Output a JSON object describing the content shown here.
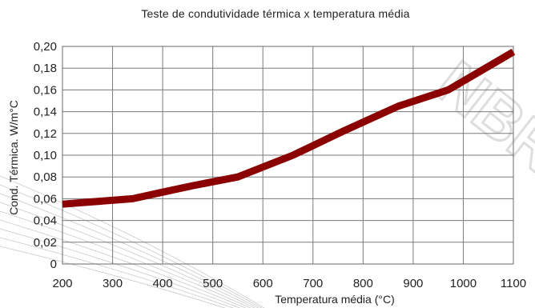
{
  "chart_data": {
    "type": "line",
    "title": "Teste de condutividade térmica x temperatura  média",
    "xlabel": "Temperatura média (°C)",
    "ylabel": "Cond. Térmica. W/m°C",
    "xlim": [
      200,
      1100
    ],
    "ylim": [
      0,
      0.2
    ],
    "x_ticks": [
      200,
      300,
      400,
      500,
      600,
      700,
      800,
      900,
      1000,
      1100
    ],
    "y_ticks": [
      0,
      0.02,
      0.04,
      0.06,
      0.08,
      0.1,
      0.12,
      0.14,
      0.16,
      0.18,
      0.2
    ],
    "x_tick_labels": [
      "200",
      "300",
      "400",
      "500",
      "600",
      "700",
      "800",
      "900",
      "1000",
      "1100"
    ],
    "y_tick_labels": [
      "0",
      "0,02",
      "0,04",
      "0,06",
      "0,08",
      "0,10",
      "0,12",
      "0,14",
      "0,16",
      "0,18",
      "0,20"
    ],
    "grid": true,
    "series": [
      {
        "color": "#8b0000",
        "x": [
          200,
          340,
          400,
          460,
          550,
          660,
          760,
          870,
          970,
          1100
        ],
        "y": [
          0.055,
          0.06,
          0.066,
          0.072,
          0.08,
          0.1,
          0.122,
          0.145,
          0.16,
          0.195
        ]
      }
    ]
  },
  "background": {
    "watermark": "NBR"
  }
}
